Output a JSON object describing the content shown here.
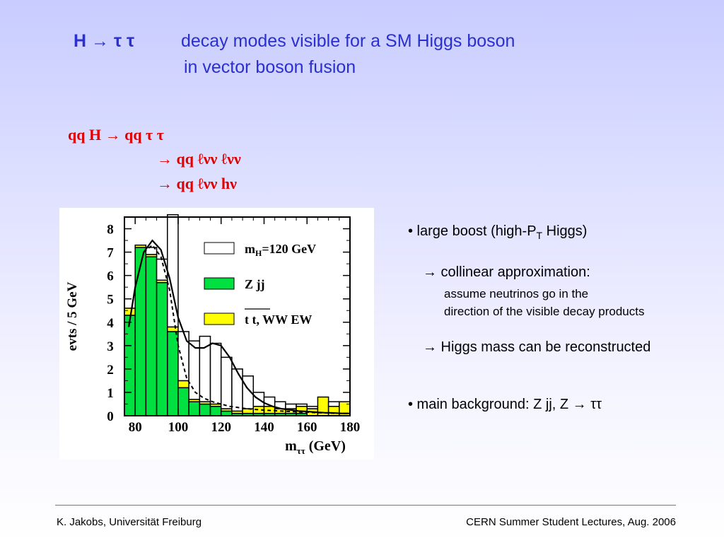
{
  "title": {
    "process": "H → τ τ",
    "line1": "decay modes visible for a SM Higgs boson",
    "line2": "in vector boson fusion"
  },
  "decay_chain": {
    "line1": "qq H   →  qq τ τ",
    "line2": "→  qq  ℓνν  ℓνν",
    "line3": "→  qq  ℓνν  hν"
  },
  "bullets": {
    "b1_pre": "• large boost (high-P",
    "b1_sub": "T",
    "b1_post": " Higgs)",
    "b1a": "→  collinear approximation:",
    "b1a_1": "assume neutrinos go in the",
    "b1a_2": "direction of the visible decay products",
    "b1b": "→  Higgs mass can be reconstructed",
    "b2": "•  main background:  Z jj,   Z → ττ"
  },
  "footer": {
    "left": "K. Jakobs,  Universität Freiburg",
    "right": "CERN Summer Student Lectures,  Aug. 2006"
  },
  "colors": {
    "title": "#2a2fd0",
    "chain": "#e00000",
    "zjj": "#00e040",
    "ttbar": "#ffff00"
  },
  "chart_data": {
    "type": "bar",
    "stacked": true,
    "bin_width": 5,
    "x": [
      77.5,
      82.5,
      87.5,
      92.5,
      97.5,
      102.5,
      107.5,
      112.5,
      117.5,
      122.5,
      127.5,
      132.5,
      137.5,
      142.5,
      147.5,
      152.5,
      157.5,
      162.5,
      167.5,
      172.5,
      177.5
    ],
    "series": [
      {
        "name": "Z jj",
        "values": [
          4.3,
          7.2,
          6.8,
          5.7,
          3.6,
          1.2,
          0.6,
          0.5,
          0.4,
          0.2,
          0.1,
          0.1,
          0.1,
          0.1,
          0.1,
          0.1,
          0.1,
          0.0,
          0.0,
          0.0,
          0.0
        ]
      },
      {
        "name": "t t, WW EW",
        "values": [
          0.3,
          0.1,
          0.1,
          0.1,
          0.2,
          0.3,
          0.1,
          0.1,
          0.1,
          0.1,
          0.1,
          0.2,
          0.3,
          0.3,
          0.2,
          0.2,
          0.3,
          0.3,
          0.8,
          0.4,
          0.6
        ]
      },
      {
        "name": "mH=120 GeV",
        "values": [
          0.0,
          0.0,
          0.3,
          0.9,
          4.8,
          2.1,
          2.5,
          2.8,
          2.6,
          2.2,
          1.8,
          1.4,
          0.6,
          0.4,
          0.3,
          0.2,
          0.1,
          0.1,
          0.0,
          0.2,
          0.0
        ]
      }
    ],
    "curves": {
      "total": {
        "x": [
          77,
          80,
          84,
          88,
          92,
          96,
          100,
          104,
          108,
          112,
          116,
          120,
          124,
          128,
          132,
          136,
          140,
          144,
          148,
          152,
          156,
          160,
          164,
          168,
          172,
          176,
          180
        ],
        "y": [
          3.8,
          5.5,
          7.0,
          7.5,
          7.1,
          5.9,
          4.2,
          3.2,
          2.9,
          2.9,
          3.1,
          3.0,
          2.5,
          1.8,
          1.2,
          0.8,
          0.55,
          0.4,
          0.3,
          0.25,
          0.2,
          0.18,
          0.15,
          0.13,
          0.12,
          0.1,
          0.1
        ]
      },
      "background": {
        "x": [
          77,
          80,
          84,
          88,
          92,
          96,
          100,
          104,
          108,
          112,
          116,
          120,
          124,
          128,
          132,
          136,
          140,
          144,
          148,
          152,
          156,
          160,
          164,
          168,
          172,
          176,
          180
        ],
        "y": [
          3.8,
          5.5,
          7.0,
          7.3,
          6.8,
          5.4,
          3.0,
          1.6,
          1.0,
          0.75,
          0.6,
          0.5,
          0.4,
          0.35,
          0.3,
          0.27,
          0.24,
          0.22,
          0.2,
          0.18,
          0.16,
          0.15,
          0.13,
          0.12,
          0.11,
          0.1,
          0.1
        ]
      }
    },
    "xlabel": "m",
    "xlabel_sub": "ττ",
    "xlabel_unit": " (GeV)",
    "ylabel": "evts / 5 GeV",
    "xlim": [
      75,
      180
    ],
    "ylim": [
      0,
      8.5
    ],
    "xticks": [
      "80",
      "100",
      "120",
      "140",
      "160",
      "180"
    ],
    "xtick_values": [
      80,
      100,
      120,
      140,
      160,
      180
    ],
    "yticks": [
      "0",
      "1",
      "2",
      "3",
      "4",
      "5",
      "6",
      "7",
      "8"
    ],
    "legend": [
      {
        "label": "m",
        "label_sub": "H",
        "label_post": "=120 GeV"
      },
      {
        "label": "Z jj",
        "label_sub": "",
        "label_post": ""
      },
      {
        "label": "t t, WW EW",
        "label_sub": "",
        "label_post": ""
      }
    ],
    "legend_placement": "top-right",
    "grid": false
  }
}
